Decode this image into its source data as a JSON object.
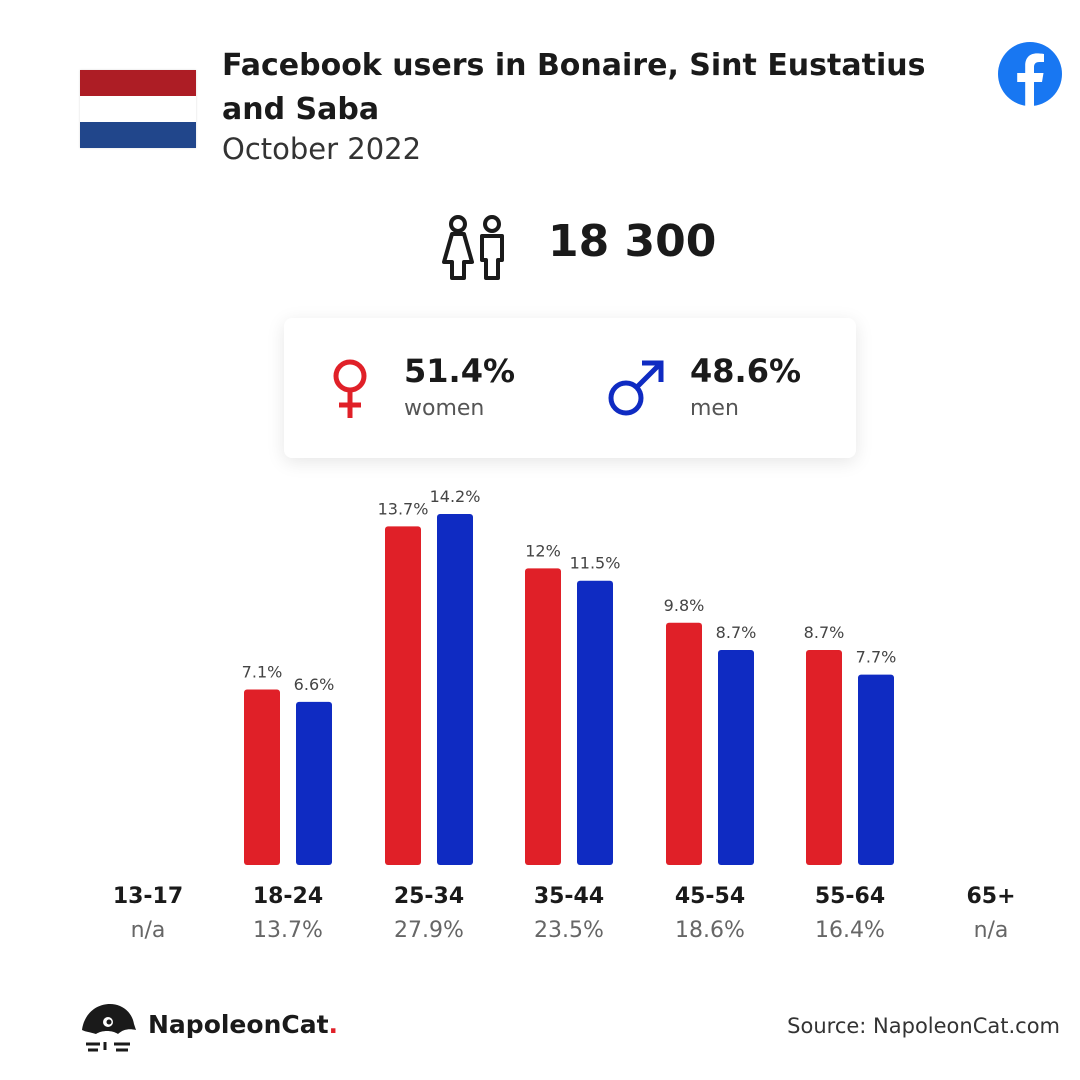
{
  "header": {
    "title": "Facebook users in Bonaire, Sint Eustatius and Saba",
    "subtitle": "October 2022"
  },
  "flag": {
    "colors": [
      "#ad1d25",
      "#ffffff",
      "#21468b"
    ]
  },
  "total_users": "18 300",
  "gender": {
    "women": {
      "percent": "51.4%",
      "label": "women",
      "color": "#e02028"
    },
    "men": {
      "percent": "48.6%",
      "label": "men",
      "color": "#0f2bc2"
    }
  },
  "footer": {
    "brand": "NapoleonCat",
    "brand_dot": ".",
    "source": "Source: NapoleonCat.com"
  },
  "chart_data": {
    "type": "bar",
    "categories": [
      "13-17",
      "18-24",
      "25-34",
      "35-44",
      "45-54",
      "55-64",
      "65+"
    ],
    "category_shares": [
      "n/a",
      "13.7%",
      "27.9%",
      "23.5%",
      "18.6%",
      "16.4%",
      "n/a"
    ],
    "series": [
      {
        "values": [
          null,
          7.1,
          13.7,
          12,
          9.8,
          8.7,
          null
        ],
        "labels": [
          "",
          "7.1%",
          "13.7%",
          "12%",
          "9.8%",
          "8.7%",
          ""
        ],
        "color": "#e02028"
      },
      {
        "values": [
          null,
          6.6,
          14.2,
          11.5,
          8.7,
          7.7,
          null
        ],
        "labels": [
          "",
          "6.6%",
          "14.2%",
          "11.5%",
          "8.7%",
          "7.7%",
          ""
        ],
        "color": "#0f2bc2"
      }
    ],
    "ylim": [
      0,
      14.2
    ],
    "grid": false
  }
}
